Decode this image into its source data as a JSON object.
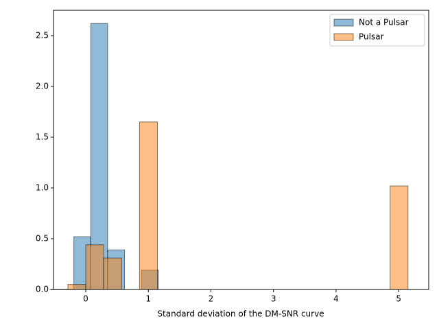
{
  "chart_data": {
    "type": "histogram",
    "xlabel": "Standard deviation of the DM-SNR curve",
    "xlim": [
      -0.515,
      5.48
    ],
    "ylim": [
      0,
      2.75
    ],
    "xticks": [
      0,
      1,
      2,
      3,
      4,
      5
    ],
    "yticks": [
      {
        "value": 0,
        "label": "0.0"
      },
      {
        "value": 0.5,
        "label": "0.5"
      },
      {
        "value": 1,
        "label": "1.0"
      },
      {
        "value": 1.5,
        "label": "1.5"
      },
      {
        "value": 2,
        "label": "2.0"
      },
      {
        "value": 2.5,
        "label": "2.5"
      }
    ],
    "legend": "upper right",
    "series": [
      {
        "name": "Not a Pulsar",
        "color": "#1f77b4",
        "bins": [
          -0.57,
          -0.19,
          0.08,
          0.35,
          0.62,
          0.89,
          1.16
        ],
        "values": [
          0.003,
          0.52,
          2.62,
          0.39,
          0,
          0.19
        ]
      },
      {
        "name": "Pulsar",
        "color": "#ff7f0e",
        "bins": [
          -0.285,
          0.001,
          0.287,
          0.573,
          0.859,
          1.145,
          1.431,
          1.717,
          2.003,
          2.289,
          2.575,
          2.861,
          3.147,
          3.433,
          3.719,
          4.005,
          4.291,
          4.577,
          4.863,
          5.149
        ],
        "values": [
          0.05,
          0.44,
          0.31,
          0,
          1.65,
          0,
          0,
          0,
          0,
          0,
          0,
          0,
          0,
          0,
          0,
          0,
          0,
          0,
          1.02
        ]
      }
    ]
  }
}
